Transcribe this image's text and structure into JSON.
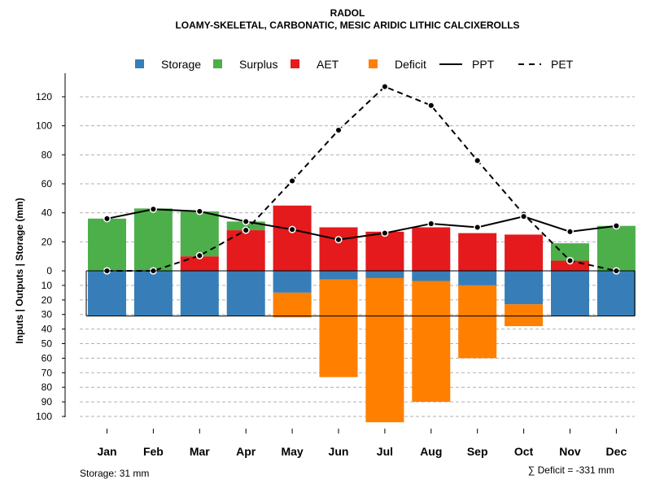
{
  "chart_data": {
    "type": "bar",
    "title": "RADOL",
    "subtitle": "LOAMY-SKELETAL, CARBONATIC, MESIC ARIDIC LITHIC CALCIXEROLLS",
    "ylabel": "Inputs | Outputs | Storage    (mm)",
    "categories": [
      "Jan",
      "Feb",
      "Mar",
      "Apr",
      "May",
      "Jun",
      "Jul",
      "Aug",
      "Sep",
      "Oct",
      "Nov",
      "Dec"
    ],
    "upper_ticks": [
      "0",
      "20",
      "40",
      "60",
      "80",
      "100",
      "120"
    ],
    "lower_ticks": [
      "10",
      "20",
      "30",
      "40",
      "50",
      "60",
      "70",
      "80",
      "90",
      "100"
    ],
    "ylim_upper": [
      0,
      130
    ],
    "ylim_lower": [
      0,
      105
    ],
    "series": [
      {
        "name": "Storage",
        "color": "#377EB8",
        "values": [
          31,
          31,
          31,
          31,
          15,
          6,
          5,
          7,
          10,
          23,
          31,
          31
        ]
      },
      {
        "name": "Surplus",
        "color": "#4DAF4A",
        "values": [
          36,
          43,
          31,
          6,
          0,
          0,
          0,
          0,
          0,
          0,
          12,
          31
        ]
      },
      {
        "name": "AET",
        "color": "#E41A1C",
        "values": [
          0,
          0,
          10,
          28,
          45,
          30,
          27,
          30,
          26,
          25,
          7,
          0
        ]
      },
      {
        "name": "Deficit",
        "color": "#FF7F00",
        "values": [
          0,
          0,
          0,
          0,
          17,
          67,
          99,
          83,
          50,
          15,
          0,
          0
        ]
      },
      {
        "name": "PPT",
        "color": "#000000",
        "style": "solid",
        "values": [
          36,
          42.5,
          41,
          34,
          28.5,
          21.5,
          26,
          32.5,
          30,
          37.5,
          27,
          31
        ]
      },
      {
        "name": "PET",
        "color": "#000000",
        "style": "dashed",
        "values": [
          0,
          0,
          10.5,
          28,
          62,
          97,
          127,
          114,
          76,
          39,
          7,
          0
        ]
      }
    ],
    "storage_label": "Storage: 31 mm",
    "deficit_label": "∑ Deficit = -331 mm"
  }
}
